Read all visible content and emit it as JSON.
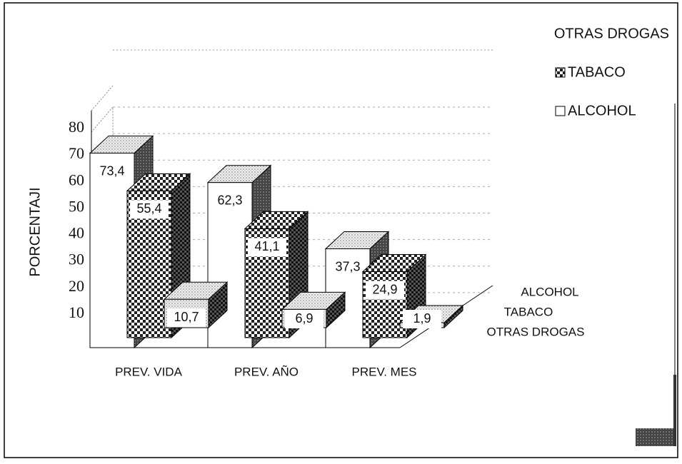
{
  "chart_data": {
    "type": "bar3d",
    "y_label": "PORCENTAJI",
    "categories": [
      "PREV. VIDA",
      "PREV. AÑO",
      "PREV. MES"
    ],
    "series": [
      {
        "name": "ALCOHOL",
        "color": "#ffffff",
        "pattern": "none",
        "values": [
          73.4,
          62.3,
          37.3
        ],
        "value_labels": [
          "73,4",
          "62,3",
          "37,3"
        ]
      },
      {
        "name": "TABACO",
        "color": "#222222",
        "pattern": "checker",
        "values": [
          55.4,
          41.1,
          24.9
        ],
        "value_labels": [
          "55,4",
          "41,1",
          "24,9"
        ]
      },
      {
        "name": "OTRAS DROGAS",
        "color": "#bbbbbb",
        "pattern": "dots",
        "values": [
          10.7,
          6.9,
          1.9
        ],
        "value_labels": [
          "10,7",
          "6,9",
          "1,9"
        ]
      }
    ],
    "ylim": [
      0,
      80
    ],
    "yticks": [
      10,
      20,
      30,
      40,
      50,
      60,
      70,
      80
    ],
    "grid": true
  }
}
